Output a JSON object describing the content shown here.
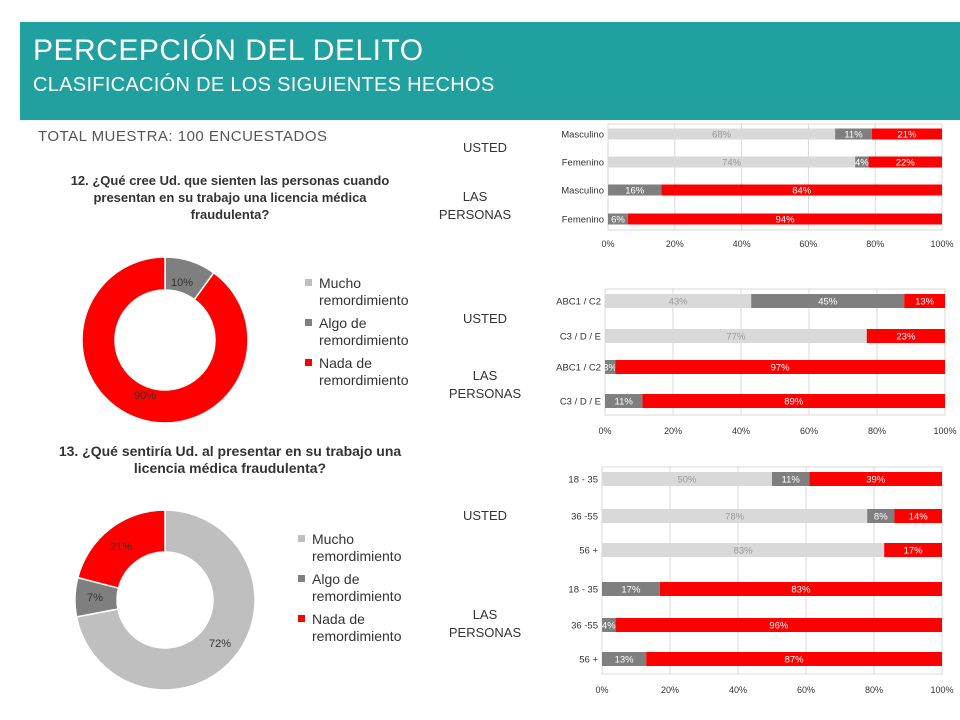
{
  "header": {
    "title": "PERCEPCIÓN DEL DELITO",
    "subtitle": "CLASIFICACIÓN DE LOS SIGUIENTES HECHOS"
  },
  "total_label": "TOTAL MUESTRA: 100 ENCUESTADOS",
  "q12": "12. ¿Qué cree Ud. que sienten las personas cuando presentan en su trabajo una licencia médica fraudulenta?",
  "q13": "13. ¿Qué sentiría Ud. al presentar en su trabajo una licencia médica fraudulenta?",
  "legend": [
    "Mucho remordimiento",
    "Algo de remordimiento",
    "Nada de remordimiento"
  ],
  "groups": {
    "usted": "USTED",
    "las": "LAS",
    "personas": "PERSONAS"
  },
  "colors": {
    "mucho": "#d9d9d9",
    "algo": "#7f7f7f",
    "nada": "#ff0000",
    "header": "#21a0a0"
  },
  "chart_data": [
    {
      "type": "pie",
      "title": "12. ¿Qué cree Ud. que sienten las personas cuando presentan en su trabajo una licencia médica fraudulenta?",
      "categories": [
        "Mucho remordimiento",
        "Algo de remordimiento",
        "Nada de remordimiento"
      ],
      "values": [
        0,
        10,
        90
      ],
      "labels": [
        "0%",
        "10%",
        "90%"
      ]
    },
    {
      "type": "pie",
      "title": "13. ¿Qué sentiría Ud. al presentar en su trabajo una licencia médica fraudulenta?",
      "categories": [
        "Mucho remordimiento",
        "Algo de remordimiento",
        "Nada de remordimiento"
      ],
      "values": [
        72,
        7,
        21
      ],
      "labels": [
        "72%",
        "7%",
        "21%"
      ]
    },
    {
      "type": "bar",
      "orientation": "horizontal",
      "stacked": true,
      "categories": [
        "Masculino",
        "Femenino",
        "Masculino",
        "Femenino"
      ],
      "series": [
        {
          "name": "Mucho remordimiento",
          "values": [
            68,
            74,
            0,
            0
          ],
          "labels": [
            "68%",
            "74%",
            "",
            ""
          ]
        },
        {
          "name": "Algo de remordimiento",
          "values": [
            11,
            4,
            16,
            6
          ],
          "labels": [
            "11%",
            "4%",
            "16%",
            "6%"
          ]
        },
        {
          "name": "Nada de remordimiento",
          "values": [
            21,
            22,
            84,
            94
          ],
          "labels": [
            "21%",
            "22%",
            "84%",
            "94%"
          ]
        }
      ],
      "xlim": [
        0,
        100
      ],
      "xticks": [
        "0%",
        "20%",
        "40%",
        "60%",
        "80%",
        "100%"
      ],
      "grid": true
    },
    {
      "type": "bar",
      "orientation": "horizontal",
      "stacked": true,
      "categories": [
        "ABC1 / C2",
        "C3 / D / E",
        "ABC1 / C2",
        "C3 / D / E"
      ],
      "series": [
        {
          "name": "Mucho remordimiento",
          "values": [
            43,
            77,
            0,
            0
          ],
          "labels": [
            "43%",
            "77%",
            "",
            ""
          ]
        },
        {
          "name": "Algo de remordimiento",
          "values": [
            45,
            0,
            3,
            11
          ],
          "labels": [
            "45%",
            "",
            "3%",
            "11%"
          ]
        },
        {
          "name": "Nada de remordimiento",
          "values": [
            13,
            23,
            97,
            89
          ],
          "labels": [
            "13%",
            "23%",
            "97%",
            "89%"
          ]
        }
      ],
      "xlim": [
        0,
        100
      ],
      "xticks": [
        "0%",
        "20%",
        "40%",
        "60%",
        "80%",
        "100%"
      ],
      "grid": true
    },
    {
      "type": "bar",
      "orientation": "horizontal",
      "stacked": true,
      "categories": [
        "18 - 35",
        "36 -55",
        "56 +",
        "18 - 35",
        "36 -55",
        "56 +"
      ],
      "series": [
        {
          "name": "Mucho remordimiento",
          "values": [
            50,
            78,
            83,
            0,
            0,
            0
          ],
          "labels": [
            "50%",
            "78%",
            "83%",
            "",
            "",
            ""
          ]
        },
        {
          "name": "Algo de remordimiento",
          "values": [
            11,
            8,
            0,
            17,
            4,
            13
          ],
          "labels": [
            "11%",
            "8%",
            "",
            "17%",
            "4%",
            "13%"
          ]
        },
        {
          "name": "Nada de remordimiento",
          "values": [
            39,
            14,
            17,
            83,
            96,
            87
          ],
          "labels": [
            "39%",
            "14%",
            "17%",
            "83%",
            "96%",
            "87%"
          ]
        }
      ],
      "xlim": [
        0,
        100
      ],
      "xticks": [
        "0%",
        "20%",
        "40%",
        "60%",
        "80%",
        "100%"
      ],
      "grid": true
    }
  ]
}
